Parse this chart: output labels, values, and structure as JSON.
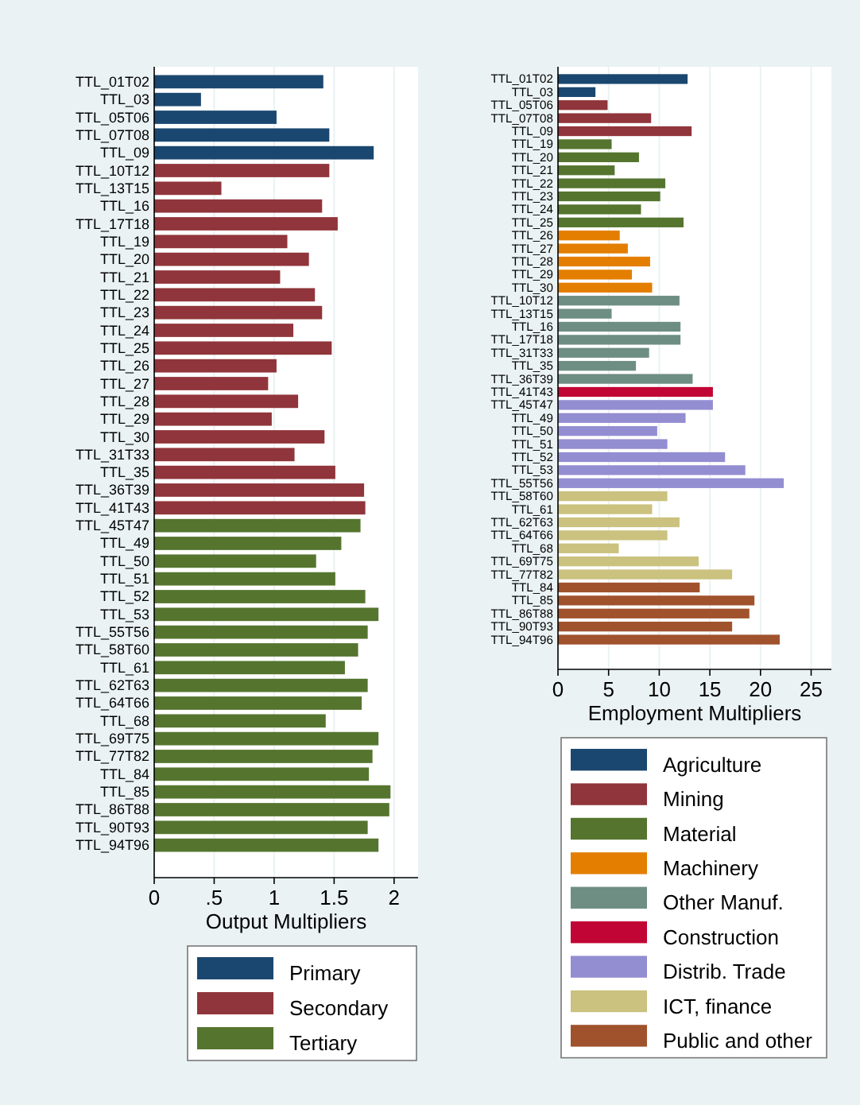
{
  "chart_data": [
    {
      "type": "bar",
      "orientation": "horizontal",
      "xlabel": "Output Multipliers",
      "categories": [
        "TTL_01T02",
        "TTL_03",
        "TTL_05T06",
        "TTL_07T08",
        "TTL_09",
        "TTL_10T12",
        "TTL_13T15",
        "TTL_16",
        "TTL_17T18",
        "TTL_19",
        "TTL_20",
        "TTL_21",
        "TTL_22",
        "TTL_23",
        "TTL_24",
        "TTL_25",
        "TTL_26",
        "TTL_27",
        "TTL_28",
        "TTL_29",
        "TTL_30",
        "TTL_31T33",
        "TTL_35",
        "TTL_36T39",
        "TTL_41T43",
        "TTL_45T47",
        "TTL_49",
        "TTL_50",
        "TTL_51",
        "TTL_52",
        "TTL_53",
        "TTL_55T56",
        "TTL_58T60",
        "TTL_61",
        "TTL_62T63",
        "TTL_64T66",
        "TTL_68",
        "TTL_69T75",
        "TTL_77T82",
        "TTL_84",
        "TTL_85",
        "TTL_86T88",
        "TTL_90T93",
        "TTL_94T96"
      ],
      "series": [
        {
          "name": "Primary",
          "color": "#1a476f",
          "values": [
            1.41,
            0.39,
            1.02,
            1.46,
            1.83,
            null,
            null,
            null,
            null,
            null,
            null,
            null,
            null,
            null,
            null,
            null,
            null,
            null,
            null,
            null,
            null,
            null,
            null,
            null,
            null,
            null,
            null,
            null,
            null,
            null,
            null,
            null,
            null,
            null,
            null,
            null,
            null,
            null,
            null,
            null,
            null,
            null,
            null,
            null
          ]
        },
        {
          "name": "Secondary",
          "color": "#90353b",
          "values": [
            null,
            null,
            null,
            null,
            null,
            1.46,
            0.56,
            1.4,
            1.53,
            1.11,
            1.29,
            1.05,
            1.34,
            1.4,
            1.16,
            1.48,
            1.02,
            0.95,
            1.2,
            0.98,
            1.42,
            1.17,
            1.51,
            1.75,
            1.76,
            null,
            null,
            null,
            null,
            null,
            null,
            null,
            null,
            null,
            null,
            null,
            null,
            null,
            null,
            null,
            null,
            null,
            null,
            null
          ]
        },
        {
          "name": "Tertiary",
          "color": "#55752f",
          "values": [
            null,
            null,
            null,
            null,
            null,
            null,
            null,
            null,
            null,
            null,
            null,
            null,
            null,
            null,
            null,
            null,
            null,
            null,
            null,
            null,
            null,
            null,
            null,
            null,
            null,
            1.72,
            1.56,
            1.35,
            1.51,
            1.76,
            1.87,
            1.78,
            1.7,
            1.59,
            1.78,
            1.73,
            1.43,
            1.87,
            1.82,
            1.79,
            1.97,
            1.96,
            1.78,
            1.87
          ]
        }
      ],
      "xlim": [
        0,
        2.2
      ],
      "xticks": [
        0,
        {
          "value": 0.5,
          "label": ".5"
        },
        1,
        1.5,
        2
      ],
      "grid": "x",
      "legend": "bottom"
    },
    {
      "type": "bar",
      "orientation": "horizontal",
      "xlabel": "Employment Multipliers",
      "categories": [
        "TTL_01T02",
        "TTL_03",
        "TTL_05T06",
        "TTL_07T08",
        "TTL_09",
        "TTL_19",
        "TTL_20",
        "TTL_21",
        "TTL_22",
        "TTL_23",
        "TTL_24",
        "TTL_25",
        "TTL_26",
        "TTL_27",
        "TTL_28",
        "TTL_29",
        "TTL_30",
        "TTL_10T12",
        "TTL_13T15",
        "TTL_16",
        "TTL_17T18",
        "TTL_31T33",
        "TTL_35",
        "TTL_36T39",
        "TTL_41T43",
        "TTL_45T47",
        "TTL_49",
        "TTL_50",
        "TTL_51",
        "TTL_52",
        "TTL_53",
        "TTL_55T56",
        "TTL_58T60",
        "TTL_61",
        "TTL_62T63",
        "TTL_64T66",
        "TTL_68",
        "TTL_69T75",
        "TTL_77T82",
        "TTL_84",
        "TTL_85",
        "TTL_86T88",
        "TTL_90T93",
        "TTL_94T96"
      ],
      "series": [
        {
          "name": "Agriculture",
          "color": "#1a476f",
          "values": [
            12.8,
            3.7,
            null,
            null,
            null,
            null,
            null,
            null,
            null,
            null,
            null,
            null,
            null,
            null,
            null,
            null,
            null,
            null,
            null,
            null,
            null,
            null,
            null,
            null,
            null,
            null,
            null,
            null,
            null,
            null,
            null,
            null,
            null,
            null,
            null,
            null,
            null,
            null,
            null,
            null,
            null,
            null,
            null,
            null
          ]
        },
        {
          "name": "Mining",
          "color": "#90353b",
          "values": [
            null,
            null,
            4.9,
            9.2,
            13.2,
            null,
            null,
            null,
            null,
            null,
            null,
            null,
            null,
            null,
            null,
            null,
            null,
            null,
            null,
            null,
            null,
            null,
            null,
            null,
            null,
            null,
            null,
            null,
            null,
            null,
            null,
            null,
            null,
            null,
            null,
            null,
            null,
            null,
            null,
            null,
            null,
            null,
            null,
            null
          ]
        },
        {
          "name": "Material",
          "color": "#55752f",
          "values": [
            null,
            null,
            null,
            null,
            null,
            5.3,
            8.0,
            5.6,
            10.6,
            10.1,
            8.2,
            12.4,
            null,
            null,
            null,
            null,
            null,
            null,
            null,
            null,
            null,
            null,
            null,
            null,
            null,
            null,
            null,
            null,
            null,
            null,
            null,
            null,
            null,
            null,
            null,
            null,
            null,
            null,
            null,
            null,
            null,
            null,
            null,
            null
          ]
        },
        {
          "name": "Machinery",
          "color": "#e37e00",
          "values": [
            null,
            null,
            null,
            null,
            null,
            null,
            null,
            null,
            null,
            null,
            null,
            null,
            6.1,
            6.9,
            9.1,
            7.3,
            9.3,
            null,
            null,
            null,
            null,
            null,
            null,
            null,
            null,
            null,
            null,
            null,
            null,
            null,
            null,
            null,
            null,
            null,
            null,
            null,
            null,
            null,
            null,
            null,
            null,
            null,
            null,
            null
          ]
        },
        {
          "name": "Other Manuf.",
          "color": "#6e8e84",
          "values": [
            null,
            null,
            null,
            null,
            null,
            null,
            null,
            null,
            null,
            null,
            null,
            null,
            null,
            null,
            null,
            null,
            null,
            12.0,
            5.3,
            12.1,
            12.1,
            9.0,
            7.7,
            13.3,
            null,
            null,
            null,
            null,
            null,
            null,
            null,
            null,
            null,
            null,
            null,
            null,
            null,
            null,
            null,
            null,
            null,
            null,
            null,
            null
          ]
        },
        {
          "name": "Construction",
          "color": "#c10534",
          "values": [
            null,
            null,
            null,
            null,
            null,
            null,
            null,
            null,
            null,
            null,
            null,
            null,
            null,
            null,
            null,
            null,
            null,
            null,
            null,
            null,
            null,
            null,
            null,
            null,
            15.3,
            null,
            null,
            null,
            null,
            null,
            null,
            null,
            null,
            null,
            null,
            null,
            null,
            null,
            null,
            null,
            null,
            null,
            null,
            null
          ]
        },
        {
          "name": "Distrib. Trade",
          "color": "#938dd2",
          "values": [
            null,
            null,
            null,
            null,
            null,
            null,
            null,
            null,
            null,
            null,
            null,
            null,
            null,
            null,
            null,
            null,
            null,
            null,
            null,
            null,
            null,
            null,
            null,
            null,
            null,
            15.3,
            12.6,
            9.8,
            10.8,
            16.5,
            18.5,
            22.3,
            null,
            null,
            null,
            null,
            null,
            null,
            null,
            null,
            null,
            null,
            null,
            null
          ]
        },
        {
          "name": "ICT, finance",
          "color": "#cac27e",
          "values": [
            null,
            null,
            null,
            null,
            null,
            null,
            null,
            null,
            null,
            null,
            null,
            null,
            null,
            null,
            null,
            null,
            null,
            null,
            null,
            null,
            null,
            null,
            null,
            null,
            null,
            null,
            null,
            null,
            null,
            null,
            null,
            null,
            10.8,
            9.3,
            12.0,
            10.8,
            6.0,
            13.9,
            17.2,
            null,
            null,
            null,
            null,
            null
          ]
        },
        {
          "name": "Public and other",
          "color": "#a0522d",
          "values": [
            null,
            null,
            null,
            null,
            null,
            null,
            null,
            null,
            null,
            null,
            null,
            null,
            null,
            null,
            null,
            null,
            null,
            null,
            null,
            null,
            null,
            null,
            null,
            null,
            null,
            null,
            null,
            null,
            null,
            null,
            null,
            null,
            null,
            null,
            null,
            null,
            null,
            null,
            null,
            14.0,
            19.4,
            18.9,
            17.2,
            21.9
          ]
        }
      ],
      "xlim": [
        0,
        27
      ],
      "xticks": [
        0,
        5,
        10,
        15,
        20,
        25
      ],
      "grid": "x",
      "legend": "bottom"
    }
  ]
}
